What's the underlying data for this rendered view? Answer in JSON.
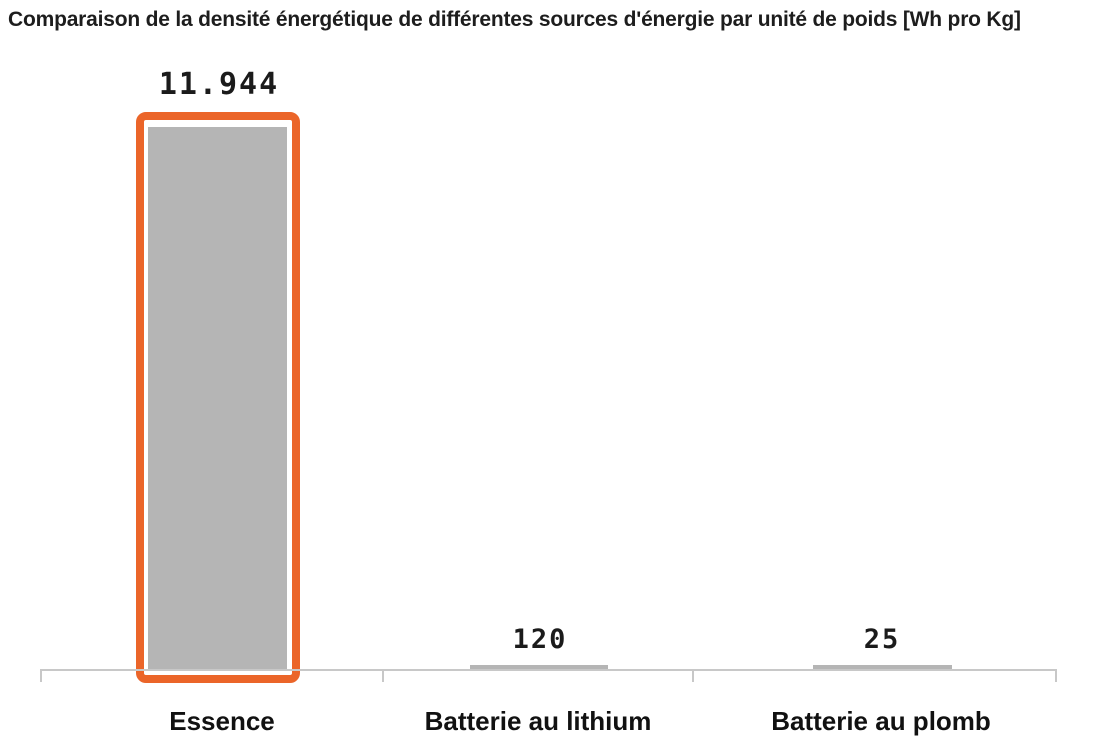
{
  "header": {
    "title": "Comparaison de la densité énergétique de différentes sources d'énergie par unité de poids  [Wh pro Kg]"
  },
  "chart_data": {
    "type": "bar",
    "title": "Comparaison de la densité énergétique de différentes sources d'énergie par unité de poids  [Wh pro Kg]",
    "unit_label": "Wh pro Kg",
    "categories": [
      "Essence",
      "Batterie au lithium",
      "Batterie au plomb"
    ],
    "values": [
      11944,
      120,
      25
    ],
    "value_labels": [
      "11.944",
      "120",
      "25"
    ],
    "ylim": [
      0,
      12000
    ],
    "grid": false,
    "legend_position": "none",
    "bar_color": "#b5b5b5",
    "axis_color": "#c8c8c8",
    "text_color": "#111111",
    "highlight": {
      "category": "Essence",
      "border_color": "#eb6529"
    }
  }
}
